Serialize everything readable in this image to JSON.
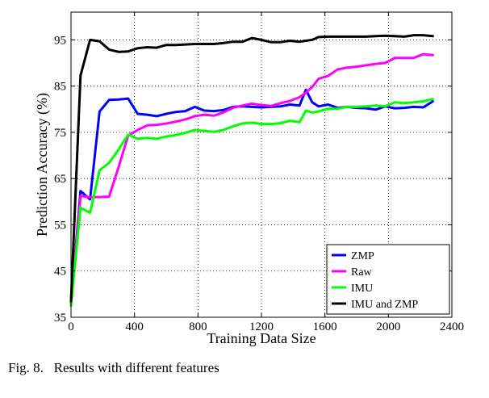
{
  "caption": "Fig. 8.   Results with different features",
  "chart_data": {
    "type": "line",
    "title": "",
    "xlabel": "Training Data Size",
    "ylabel": "Prediction Accuracy (%)",
    "xlim": [
      0,
      2400
    ],
    "ylim": [
      35,
      101
    ],
    "xticks": [
      0,
      400,
      800,
      1200,
      1600,
      2000,
      2400
    ],
    "yticks": [
      35,
      45,
      55,
      65,
      75,
      85,
      95
    ],
    "grid": true,
    "legend_position": "bottom-right",
    "series": [
      {
        "name": "ZMP",
        "color": "#0000ff",
        "x": [
          0,
          60,
          120,
          180,
          240,
          300,
          360,
          420,
          480,
          540,
          600,
          660,
          720,
          780,
          840,
          900,
          960,
          1020,
          1080,
          1140,
          1200,
          1260,
          1320,
          1380,
          1440,
          1480,
          1520,
          1560,
          1620,
          1680,
          1740,
          1800,
          1860,
          1920,
          1980,
          2040,
          2100,
          2160,
          2220,
          2280
        ],
        "values": [
          38,
          62.3,
          60.5,
          79.5,
          82,
          82.1,
          82.3,
          79,
          78.8,
          78.5,
          79,
          79.4,
          79.6,
          80.5,
          79.7,
          79.6,
          79.8,
          80.5,
          80.6,
          80.5,
          80.4,
          80.5,
          80.6,
          81,
          80.8,
          84.2,
          81.5,
          80.6,
          81,
          80.3,
          80.5,
          80.3,
          80.2,
          79.9,
          80.6,
          80.2,
          80.3,
          80.5,
          80.4,
          81.7
        ]
      },
      {
        "name": "Raw",
        "color": "#ff00ff",
        "x": [
          0,
          60,
          120,
          180,
          240,
          300,
          360,
          420,
          480,
          540,
          600,
          660,
          720,
          780,
          840,
          900,
          960,
          1020,
          1080,
          1140,
          1200,
          1260,
          1320,
          1380,
          1440,
          1480,
          1520,
          1560,
          1620,
          1680,
          1740,
          1800,
          1860,
          1920,
          1980,
          2040,
          2100,
          2160,
          2220,
          2280
        ],
        "values": [
          38,
          61.2,
          61,
          61,
          61.1,
          67.5,
          74.3,
          75.5,
          76.5,
          76.6,
          76.9,
          77.3,
          77.8,
          78.5,
          78.8,
          78.6,
          79.3,
          80.3,
          80.8,
          81.2,
          80.9,
          80.7,
          81.3,
          81.8,
          82.6,
          83.6,
          84.8,
          86.6,
          87.2,
          88.6,
          89,
          89.2,
          89.5,
          89.8,
          90,
          91.1,
          91.1,
          91.1,
          91.9,
          91.7
        ]
      },
      {
        "name": "IMU",
        "color": "#00ff00",
        "x": [
          0,
          60,
          120,
          180,
          240,
          300,
          360,
          420,
          480,
          540,
          600,
          660,
          720,
          780,
          840,
          900,
          960,
          1020,
          1080,
          1140,
          1200,
          1260,
          1320,
          1380,
          1440,
          1480,
          1520,
          1560,
          1620,
          1680,
          1740,
          1800,
          1860,
          1920,
          1980,
          2040,
          2100,
          2160,
          2220,
          2280
        ],
        "values": [
          37.5,
          58.7,
          57.6,
          66.8,
          68.4,
          71.3,
          74.5,
          73.6,
          73.8,
          73.6,
          74.1,
          74.4,
          74.9,
          75.5,
          75.3,
          75.1,
          75.5,
          76.3,
          76.9,
          77.1,
          76.8,
          76.8,
          77,
          77.5,
          77.2,
          79.7,
          79.3,
          79.5,
          80.1,
          80.1,
          80.5,
          80.5,
          80.6,
          80.8,
          80.6,
          81.5,
          81.3,
          81.5,
          81.7,
          82.2
        ]
      },
      {
        "name": "IMU and ZMP",
        "color": "#000000",
        "x": [
          0,
          60,
          120,
          180,
          240,
          300,
          360,
          420,
          480,
          540,
          600,
          660,
          720,
          780,
          840,
          900,
          960,
          1020,
          1080,
          1140,
          1200,
          1260,
          1320,
          1380,
          1440,
          1480,
          1520,
          1560,
          1620,
          1680,
          1740,
          1800,
          1860,
          1920,
          1980,
          2040,
          2100,
          2160,
          2220,
          2280
        ],
        "values": [
          38.5,
          87.3,
          95,
          94.7,
          92.9,
          92.4,
          92.5,
          93.2,
          93.4,
          93.3,
          93.9,
          93.9,
          94,
          94.1,
          94.1,
          94.1,
          94.3,
          94.6,
          94.6,
          95.4,
          95,
          94.5,
          94.5,
          94.8,
          94.6,
          94.8,
          95,
          95.6,
          95.7,
          95.7,
          95.7,
          95.7,
          95.7,
          95.8,
          95.9,
          95.8,
          95.7,
          96,
          96,
          95.8
        ]
      }
    ]
  }
}
